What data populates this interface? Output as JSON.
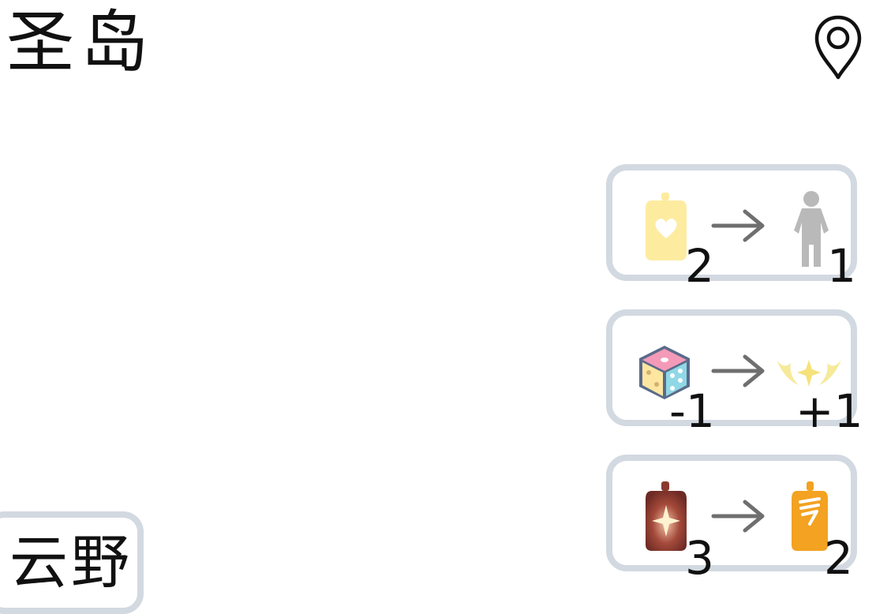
{
  "header": {
    "title": "圣岛",
    "location_icon": "map-pin-icon"
  },
  "exchanges": [
    {
      "from_icon": "yellow-heart-bottle-icon",
      "from_amount": "2",
      "to_icon": "grey-character-icon",
      "to_amount": "1"
    },
    {
      "from_icon": "dice-icon",
      "from_amount": "-1",
      "to_icon": "golden-wings-star-icon",
      "to_amount": "+1"
    },
    {
      "from_icon": "brown-star-bottle-icon",
      "from_amount": "3",
      "to_icon": "orange-bottle-icon",
      "to_amount": "2"
    }
  ],
  "footer": {
    "tab_label": "云野"
  },
  "colors": {
    "card_border": "#d3d9e1",
    "arrow": "#6f6f6f",
    "yellow_bottle": "#fdeca0",
    "grey_character": "#b9b9b9",
    "brown_bottle": "#8a3a30",
    "orange_bottle": "#f3a221",
    "wings": "#f6ea9a"
  }
}
